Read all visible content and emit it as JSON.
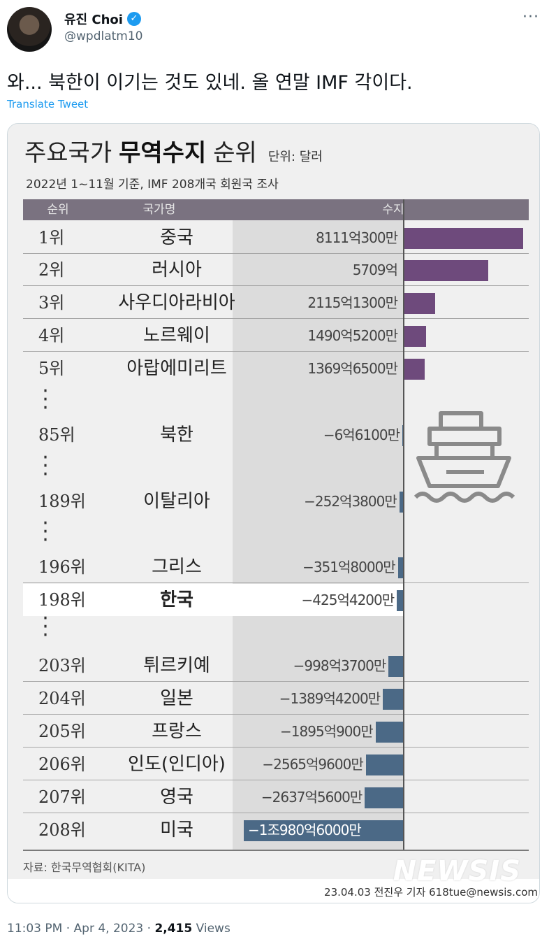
{
  "author": {
    "name": "유진 Choi",
    "handle": "@wpdlatm10",
    "verified_icon": "verified-badge-icon"
  },
  "more_label": "···",
  "tweet_text": "와... 북한이 이기는 것도 있네. 올 연말 IMF 각이다.",
  "translate_label": "Translate Tweet",
  "infographic": {
    "title_part1": "주요국가",
    "title_part2": "무역수지",
    "title_part3": "순위",
    "unit": "단위: 달러",
    "subtitle": "2022년 1~11월 기준, IMF 208개국 회원국 조사",
    "header_rank": "순위",
    "header_country": "국가명",
    "header_value": "수지",
    "source": "자료: 한국무역협회(KITA)",
    "watermark": "NEWSIS",
    "credit": "23.04.03 전진우 기자 618tue@newsis.com"
  },
  "chart_data": {
    "type": "bar",
    "title": "주요국가 무역수지 순위",
    "unit": "달러",
    "ranks": [
      "1위",
      "2위",
      "3위",
      "4위",
      "5위",
      "85위",
      "189위",
      "196위",
      "198위",
      "203위",
      "204위",
      "205위",
      "206위",
      "207위",
      "208위"
    ],
    "categories": [
      "중국",
      "러시아",
      "사우디아라비아",
      "노르웨이",
      "아랍에미리트",
      "북한",
      "이탈리아",
      "그리스",
      "한국",
      "튀르키예",
      "일본",
      "프랑스",
      "인도(인디아)",
      "영국",
      "미국"
    ],
    "value_labels": [
      "8111억300만",
      "5709억",
      "2115억1300만",
      "1490억5200만",
      "1369억6500만",
      "−6억6100만",
      "−252억3800만",
      "−351억8000만",
      "−425억4200만",
      "−998억3700만",
      "−1389억4200만",
      "−1895억900만",
      "−2565억9600만",
      "−2637억5600만",
      "−1조980억6000만"
    ],
    "values": [
      811103000000,
      570900000000,
      211513000000,
      149052000000,
      136965000000,
      -661000000,
      -25238000000,
      -35180000000,
      -42542000000,
      -99837000000,
      -138942000000,
      -189509000000,
      -256596000000,
      -263756000000,
      -1098060000000
    ],
    "highlight": "한국",
    "colors": {
      "positive": "#6e4a7c",
      "negative": "#4b6986"
    }
  },
  "meta": {
    "time": "11:03 PM · Apr 4, 2023 · ",
    "views_count": "2,415",
    "views_label": " Views"
  }
}
